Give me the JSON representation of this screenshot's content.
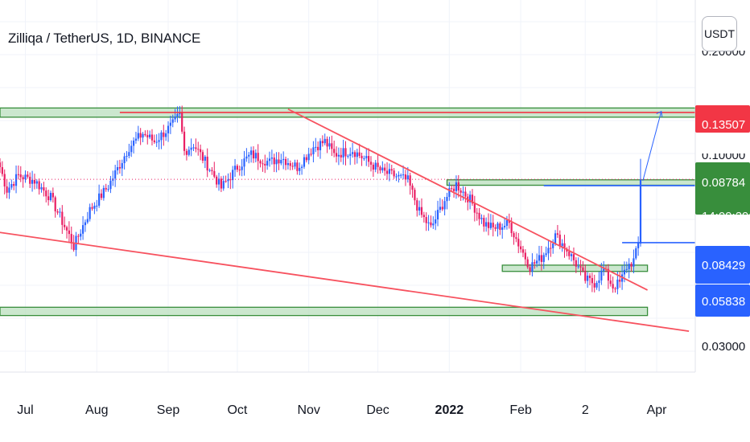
{
  "header": {
    "title": "Zilliqa / TetherUS, 1D, BINANCE",
    "currency_button": "USDT"
  },
  "price_scale": {
    "labels": [
      {
        "text": "0.20000",
        "partial": true
      },
      {
        "text": "0.10000",
        "partial": true
      },
      {
        "text": "0.03000",
        "partial": false
      }
    ],
    "badges": [
      {
        "text": "0.13507",
        "bg": "#f23645"
      },
      {
        "text": "0.08784",
        "bg": "#388e3c"
      },
      {
        "text": "14:09:29",
        "bg": "#388e3c"
      },
      {
        "text": "0.08429",
        "bg": "#2962ff"
      },
      {
        "text": "0.05838",
        "bg": "#2962ff"
      }
    ]
  },
  "time_axis": {
    "labels": [
      "Jul",
      "Aug",
      "Sep",
      "Oct",
      "Nov",
      "Dec",
      "2022",
      "Feb",
      "2",
      "Apr"
    ]
  },
  "colors": {
    "up": "#2962ff",
    "down": "#e91e63",
    "resistance": "#f23645",
    "trend": "#f7525f",
    "zone_fill": "#b9dfbe",
    "zone_border": "#388e3c",
    "projection": "#2962ff"
  },
  "chart_data": {
    "type": "candlestick",
    "symbol": "ZILUSDT",
    "interval": "1D",
    "exchange": "BINANCE",
    "scale": "log",
    "ylim": [
      0.025,
      0.24
    ],
    "start": "2021-06-20",
    "end": "2022-03-25",
    "close_path": [
      [
        "2021-06-20",
        0.095
      ],
      [
        "2021-06-23",
        0.082
      ],
      [
        "2021-06-28",
        0.09
      ],
      [
        "2021-07-05",
        0.087
      ],
      [
        "2021-07-12",
        0.078
      ],
      [
        "2021-07-20",
        0.061
      ],
      [
        "2021-07-22",
        0.057
      ],
      [
        "2021-07-29",
        0.072
      ],
      [
        "2021-08-06",
        0.084
      ],
      [
        "2021-08-15",
        0.108
      ],
      [
        "2021-08-21",
        0.118
      ],
      [
        "2021-08-26",
        0.112
      ],
      [
        "2021-09-03",
        0.125
      ],
      [
        "2021-09-06",
        0.133
      ],
      [
        "2021-09-08",
        0.105
      ],
      [
        "2021-09-12",
        0.11
      ],
      [
        "2021-09-20",
        0.092
      ],
      [
        "2021-09-24",
        0.083
      ],
      [
        "2021-10-01",
        0.095
      ],
      [
        "2021-10-07",
        0.103
      ],
      [
        "2021-10-15",
        0.098
      ],
      [
        "2021-10-20",
        0.101
      ],
      [
        "2021-10-27",
        0.095
      ],
      [
        "2021-11-03",
        0.108
      ],
      [
        "2021-11-08",
        0.112
      ],
      [
        "2021-11-12",
        0.103
      ],
      [
        "2021-11-20",
        0.106
      ],
      [
        "2021-11-28",
        0.097
      ],
      [
        "2021-12-03",
        0.092
      ],
      [
        "2021-12-08",
        0.09
      ],
      [
        "2021-12-14",
        0.087
      ],
      [
        "2021-12-19",
        0.071
      ],
      [
        "2021-12-24",
        0.064
      ],
      [
        "2021-12-30",
        0.077
      ],
      [
        "2022-01-04",
        0.085
      ],
      [
        "2022-01-10",
        0.077
      ],
      [
        "2022-01-16",
        0.066
      ],
      [
        "2022-01-20",
        0.064
      ],
      [
        "2022-01-27",
        0.066
      ],
      [
        "2022-01-31",
        0.058
      ],
      [
        "2022-02-05",
        0.05
      ],
      [
        "2022-02-10",
        0.053
      ],
      [
        "2022-02-16",
        0.061
      ],
      [
        "2022-02-20",
        0.057
      ],
      [
        "2022-02-25",
        0.051
      ],
      [
        "2022-03-01",
        0.046
      ],
      [
        "2022-03-05",
        0.045
      ],
      [
        "2022-03-09",
        0.049
      ],
      [
        "2022-03-13",
        0.044
      ],
      [
        "2022-03-16",
        0.045
      ],
      [
        "2022-03-19",
        0.05
      ],
      [
        "2022-03-22",
        0.052
      ],
      [
        "2022-03-23",
        0.0545
      ],
      [
        "2022-03-24",
        0.058
      ],
      [
        "2022-03-25",
        0.0878
      ]
    ],
    "annotations": [
      {
        "kind": "zone",
        "label": "top resistance zone",
        "from": "2021-06-15",
        "to": "2022-04-30",
        "low": 0.131,
        "high": 0.139
      },
      {
        "kind": "zone",
        "label": "bottom support zone",
        "from": "2021-06-15",
        "to": "2022-03-28",
        "low": 0.0365,
        "high": 0.0385
      },
      {
        "kind": "zone",
        "label": "mid breakout zone",
        "from": "2021-12-31",
        "to": "2022-04-30",
        "low": 0.0845,
        "high": 0.0875
      },
      {
        "kind": "zone",
        "label": "small consolidation zone",
        "from": "2022-01-24",
        "to": "2022-03-28",
        "low": 0.0485,
        "high": 0.0505
      },
      {
        "kind": "hline",
        "label": "resistance 0.13507",
        "from": "2021-08-11",
        "to": "2022-04-30",
        "value": 0.13507,
        "color": "#f23645"
      },
      {
        "kind": "hline",
        "label": "level 0.08429",
        "from": "2022-02-11",
        "to": "2022-04-30",
        "value": 0.08429,
        "color": "#2962ff"
      },
      {
        "kind": "hline",
        "label": "level 0.05838",
        "from": "2022-03-17",
        "to": "2022-04-30",
        "value": 0.05838,
        "color": "#2962ff"
      },
      {
        "kind": "trendline",
        "label": "descending trendline",
        "from": [
          "2021-10-23",
          0.138
        ],
        "to": [
          "2022-03-28",
          0.043
        ],
        "color": "#f7525f"
      },
      {
        "kind": "trendline",
        "label": "lower support line",
        "from": [
          "2021-06-15",
          0.063
        ],
        "to": [
          "2022-04-15",
          0.033
        ],
        "color": "#f7525f"
      },
      {
        "kind": "projection",
        "label": "upside projection",
        "from": [
          "2022-03-26",
          0.087
        ],
        "to": [
          "2022-04-03",
          0.136
        ],
        "color": "#2962ff"
      }
    ]
  }
}
